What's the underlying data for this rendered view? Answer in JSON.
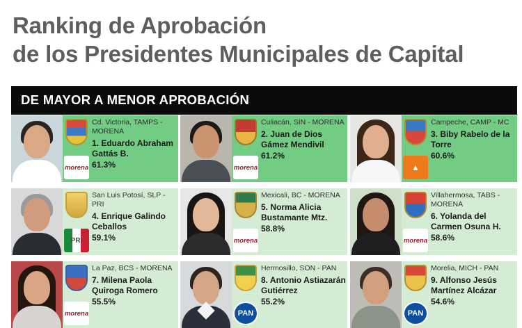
{
  "title": {
    "line1": "Ranking de Aprobación",
    "line2": "de los Presidentes Municipales de Capital"
  },
  "banner": "DE MAYOR A MENOR APROBACIÓN",
  "colors": {
    "top_three": "#72cc84",
    "others": "#d4ecd4",
    "banner": "#0b0b0b",
    "title": "#5e5e5e"
  },
  "cards": [
    {
      "location": "Cd. Victoria, TAMPS - MORENA",
      "name": "1. Eduardo Abraham Gattás B.",
      "approval": "61.3%",
      "party": "morena",
      "party_label": "morena"
    },
    {
      "location": "Culiacán, SIN - MORENA",
      "name": "2. Juan de Dios Gámez Mendivil",
      "approval": "61.2%",
      "party": "morena",
      "party_label": "morena"
    },
    {
      "location": "Campeche, CAMP - MC",
      "name": "3. Biby Rabelo de la Torre",
      "approval": "60.6%",
      "party": "mc",
      "party_label": ""
    },
    {
      "location": "San Luis Potosí, SLP - PRI",
      "name": "4. Enrique Galindo Ceballos",
      "approval": "59.1%",
      "party": "pri",
      "party_label": "PRI"
    },
    {
      "location": "Mexicali, BC - MORENA",
      "name": "5. Norma Alicia Bustamante Mtz.",
      "approval": "58.8%",
      "party": "morena",
      "party_label": "morena"
    },
    {
      "location": "Villahermosa, TABS - MORENA",
      "name": "6. Yolanda del Carmen Osuna H.",
      "approval": "58.6%",
      "party": "morena",
      "party_label": "morena"
    },
    {
      "location": "La Paz, BCS - MORENA",
      "name": "7. Milena Paola Quiroga Romero",
      "approval": "55.5%",
      "party": "morena",
      "party_label": "morena"
    },
    {
      "location": "Hermosillo, SON - PAN",
      "name": "8. Antonio Astiazarán Gutiérrez",
      "approval": "55.2%",
      "party": "pan",
      "party_label": "PAN"
    },
    {
      "location": "Morelia, MICH - PAN",
      "name": "9. Alfonso Jesús Martínez Alcázar",
      "approval": "54.6%",
      "party": "pan",
      "party_label": "PAN"
    }
  ]
}
